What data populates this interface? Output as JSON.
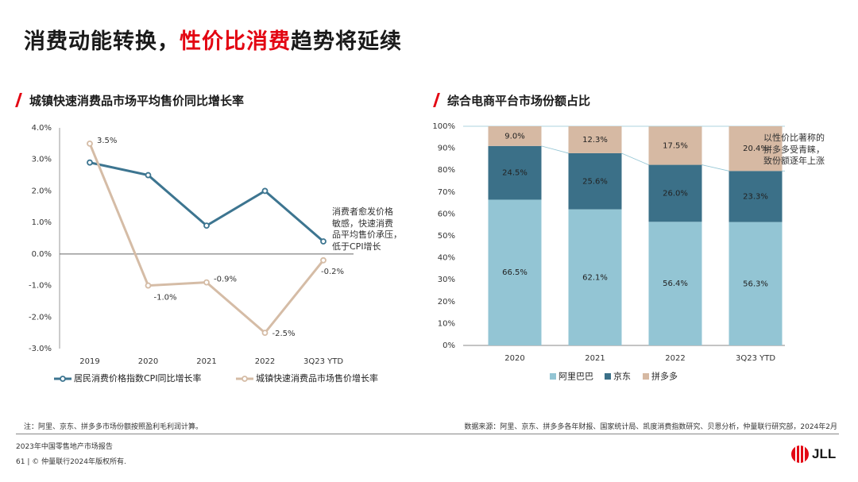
{
  "page_title": {
    "part1": "消费动能转换，",
    "part2": "性价比消费",
    "part3": "趋势将延续"
  },
  "accent_color": "#e30613",
  "left_section": {
    "title": "城镇快速消费品市场平均售价同比增长率"
  },
  "right_section": {
    "title": "综合电商平台市场份额占比"
  },
  "chart_data": [
    {
      "type": "line",
      "categories": [
        "2019",
        "2020",
        "2021",
        "2022",
        "3Q23 YTD"
      ],
      "ylim": [
        -3.0,
        4.0
      ],
      "y_ticks": [
        "4.0%",
        "3.0%",
        "2.0%",
        "1.0%",
        "0.0%",
        "-1.0%",
        "-2.0%",
        "-3.0%"
      ],
      "legend_position": "bottom",
      "series": [
        {
          "name": "居民消费价格指数CPI同比增长率",
          "values": [
            2.9,
            2.5,
            0.9,
            2.0,
            0.4
          ],
          "color": "#3d7590",
          "labels": []
        },
        {
          "name": "城镇快速消费品市场售价增长率",
          "values": [
            3.5,
            -1.0,
            -0.9,
            -2.5,
            -0.2
          ],
          "color": "#d5bca6",
          "labels": [
            "3.5%",
            "-1.0%",
            "-0.9%",
            "-2.5%",
            "-0.2%"
          ]
        }
      ],
      "annotation": [
        "消费者愈发价格",
        "敏感，快速消费",
        "品平均售价承压，",
        "低于CPI增长"
      ]
    },
    {
      "type": "bar",
      "stacked": true,
      "categories": [
        "2020",
        "2021",
        "2022",
        "3Q23 YTD"
      ],
      "ylim": [
        0,
        100
      ],
      "y_ticks": [
        "100%",
        "90%",
        "80%",
        "70%",
        "60%",
        "50%",
        "40%",
        "30%",
        "20%",
        "10%",
        "0%"
      ],
      "legend_position": "bottom",
      "series": [
        {
          "name": "阿里巴巴",
          "values": [
            66.5,
            62.1,
            56.4,
            56.3
          ],
          "labels": [
            "66.5%",
            "62.1%",
            "56.4%",
            "56.3%"
          ],
          "color": "#93c5d4"
        },
        {
          "name": "京东",
          "values": [
            24.5,
            25.6,
            26.0,
            23.3
          ],
          "labels": [
            "24.5%",
            "25.6%",
            "26.0%",
            "23.3%"
          ],
          "color": "#3b7088"
        },
        {
          "name": "拼多多",
          "values": [
            9.0,
            12.3,
            17.5,
            20.4
          ],
          "labels": [
            "9.0%",
            "12.3%",
            "17.5%",
            "20.4%"
          ],
          "color": "#d6b9a3"
        }
      ],
      "annotation": [
        "以性价比著称的",
        "拼多多受青睐，",
        "致份额逐年上涨"
      ]
    }
  ],
  "note": "注：阿里、京东、拼多多市场份额按照盈利毛利润计算。",
  "source": "数据来源：阿里、京东、拼多多各年财报、国家统计局、凯度消费指数研究、贝恩分析，仲量联行研究部，2024年2月",
  "footer": {
    "report": "2023年中国零售地产市场报告",
    "copyright": "61 | © 仲量联行2024年版权所有."
  },
  "logo": {
    "text": "JLL"
  }
}
